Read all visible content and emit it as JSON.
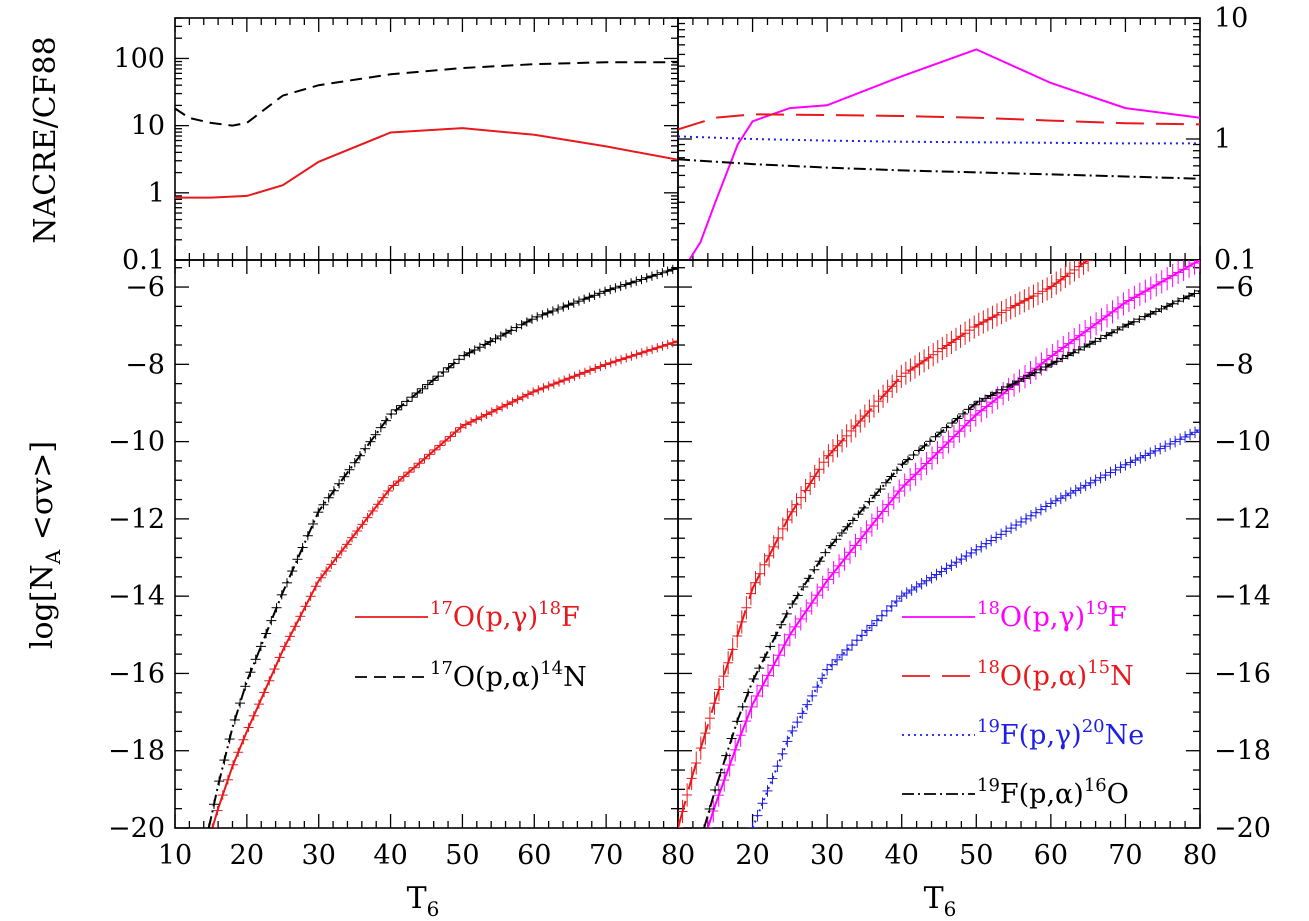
{
  "chart_data": [
    {
      "panel": "top-left",
      "type": "line",
      "yscale": "log",
      "xlim": [
        10,
        80
      ],
      "ylim": [
        0.1,
        400
      ],
      "ylabel": "NACRE/CF88",
      "y_ticklabels": [
        "0.1",
        "1",
        "10",
        "100"
      ],
      "series": [
        {
          "name": "17O(p,γ)18F",
          "color": "#e8191c",
          "dash": "solid",
          "x": [
            10,
            15,
            20,
            25,
            30,
            40,
            50,
            60,
            70,
            80
          ],
          "y": [
            0.85,
            0.85,
            0.9,
            1.3,
            2.9,
            7.9,
            9.2,
            7.3,
            4.9,
            3.1
          ]
        },
        {
          "name": "17O(p,α)14N",
          "color": "#000000",
          "dash": "dashed",
          "x": [
            10,
            12,
            15,
            18,
            20,
            25,
            30,
            40,
            50,
            60,
            70,
            80
          ],
          "y": [
            18,
            13,
            11,
            10,
            11,
            28,
            40,
            58,
            72,
            82,
            88,
            88
          ]
        }
      ]
    },
    {
      "panel": "top-right",
      "type": "line",
      "yscale": "log",
      "xlim": [
        10,
        80
      ],
      "ylim": [
        0.1,
        10
      ],
      "y_ticklabels": [
        "0.1",
        "1",
        "10"
      ],
      "series": [
        {
          "name": "18O(p,γ)19F",
          "color": "#ff00ff",
          "dash": "solid",
          "x": [
            11.5,
            13,
            15,
            18,
            20,
            25,
            30,
            40,
            50,
            60,
            70,
            80
          ],
          "y": [
            0.1,
            0.14,
            0.3,
            0.9,
            1.4,
            1.8,
            1.9,
            3.3,
            5.5,
            2.9,
            1.8,
            1.5
          ]
        },
        {
          "name": "18O(p,α)15N",
          "color": "#e8191c",
          "dash": "longdash",
          "x": [
            10,
            15,
            20,
            30,
            40,
            50,
            60,
            70,
            80
          ],
          "y": [
            1.2,
            1.5,
            1.6,
            1.58,
            1.55,
            1.5,
            1.42,
            1.35,
            1.32
          ]
        },
        {
          "name": "19F(p,γ)20Ne",
          "color": "#1e1ee6",
          "dash": "dotted",
          "x": [
            10,
            20,
            30,
            40,
            50,
            60,
            70,
            80
          ],
          "y": [
            1.05,
            1.0,
            0.97,
            0.95,
            0.94,
            0.93,
            0.92,
            0.92
          ]
        },
        {
          "name": "19F(p,α)16O",
          "color": "#000000",
          "dash": "dashdot",
          "x": [
            10,
            20,
            30,
            40,
            50,
            60,
            70,
            80
          ],
          "y": [
            0.68,
            0.62,
            0.58,
            0.55,
            0.53,
            0.51,
            0.49,
            0.47
          ]
        }
      ]
    },
    {
      "panel": "bottom-left",
      "type": "line",
      "xlim": [
        10,
        80
      ],
      "ylim": [
        -20,
        -5.3
      ],
      "xlabel": "T6",
      "ylabel": "log[NA <σv>]",
      "x_ticklabels": [
        "10",
        "20",
        "30",
        "40",
        "50",
        "60",
        "70",
        "80"
      ],
      "y_ticklabels": [
        "−20",
        "−18",
        "−16",
        "−14",
        "−12",
        "−10",
        "−8",
        "−6"
      ],
      "series": [
        {
          "name": "17O(p,γ)18F",
          "color": "#e8191c",
          "dash": "solid",
          "errorbars": true,
          "x": [
            15.2,
            16,
            18,
            20,
            25,
            30,
            40,
            50,
            60,
            70,
            80
          ],
          "y": [
            -20,
            -19.5,
            -18.4,
            -17.5,
            -15.4,
            -13.6,
            -11.2,
            -9.6,
            -8.7,
            -8.0,
            -7.4
          ]
        },
        {
          "name": "17O(p,α)14N",
          "color": "#000000",
          "dash": "dashdot",
          "errorbars": true,
          "x": [
            14.7,
            16,
            18,
            20,
            25,
            30,
            40,
            50,
            60,
            70,
            80
          ],
          "y": [
            -20,
            -18.9,
            -17.4,
            -16.2,
            -13.9,
            -11.8,
            -9.3,
            -7.8,
            -6.8,
            -6.1,
            -5.5
          ]
        }
      ]
    },
    {
      "panel": "bottom-right",
      "type": "line",
      "xlim": [
        10,
        80
      ],
      "ylim": [
        -20,
        -5.3
      ],
      "xlabel": "T6",
      "x_ticklabels": [
        "20",
        "30",
        "40",
        "50",
        "60",
        "70",
        "80"
      ],
      "y_ticklabels": [
        "−20",
        "−18",
        "−16",
        "−14",
        "−12",
        "−10",
        "−8",
        "−6"
      ],
      "series": [
        {
          "name": "18O(p,α)15N",
          "color": "#e8191c",
          "dash": "longdash",
          "errorbars": true,
          "errsize": 0.3,
          "x": [
            10,
            12,
            15,
            18,
            20,
            25,
            30,
            40,
            50,
            60,
            65
          ],
          "y": [
            -20,
            -18.6,
            -16.7,
            -15.0,
            -13.8,
            -11.9,
            -10.4,
            -8.3,
            -7.0,
            -6.0,
            -5.3
          ]
        },
        {
          "name": "18O(p,γ)19F",
          "color": "#ff00ff",
          "dash": "solid",
          "errorbars": true,
          "errsize": 0.3,
          "x": [
            14,
            15,
            18,
            20,
            25,
            30,
            40,
            50,
            60,
            70,
            80
          ],
          "y": [
            -20,
            -19.4,
            -17.8,
            -16.8,
            -15.0,
            -13.6,
            -11.2,
            -9.3,
            -7.8,
            -6.4,
            -5.3
          ]
        },
        {
          "name": "19F(p,γ)20Ne",
          "color": "#1e1ee6",
          "dash": "dotted",
          "errorbars": true,
          "errsize": 0.15,
          "x": [
            20,
            25,
            30,
            40,
            50,
            60,
            70,
            80
          ],
          "y": [
            -20,
            -17.6,
            -15.9,
            -14.0,
            -12.8,
            -11.6,
            -10.6,
            -9.7
          ]
        },
        {
          "name": "19F(p,α)16O",
          "color": "#000000",
          "dash": "dashdot",
          "errorbars": true,
          "errsize": 0.1,
          "x": [
            13.5,
            15,
            18,
            20,
            25,
            30,
            40,
            50,
            60,
            70,
            80
          ],
          "y": [
            -20,
            -19.0,
            -17.2,
            -16.2,
            -14.3,
            -12.8,
            -10.6,
            -9.0,
            -8.0,
            -7.0,
            -6.1
          ]
        }
      ]
    }
  ],
  "legend_left": [
    {
      "pre": "17",
      "mid": "O(p,γ)",
      "sup": "18",
      "end": "F",
      "color": "#e8191c",
      "dash": "solid"
    },
    {
      "pre": "17",
      "mid": "O(p,α)",
      "sup": "14",
      "end": "N",
      "color": "#000000",
      "dash": "dashed"
    }
  ],
  "legend_right": [
    {
      "pre": "18",
      "mid": "O(p,γ)",
      "sup": "19",
      "end": "F",
      "color": "#ff00ff",
      "dash": "solid"
    },
    {
      "pre": "18",
      "mid": "O(p,α)",
      "sup": "15",
      "end": "N",
      "color": "#e8191c",
      "dash": "longdash"
    },
    {
      "pre": "19",
      "mid": "F(p,γ)",
      "sup": "20",
      "end": "Ne",
      "color": "#1e1ee6",
      "dash": "dotted"
    },
    {
      "pre": "19",
      "mid": "F(p,α)",
      "sup": "16",
      "end": "O",
      "color": "#000000",
      "dash": "dashdot"
    }
  ],
  "labels": {
    "top_ylabel": "NACRE/CF88",
    "bottom_ylabel_main": "log[N",
    "bottom_ylabel_sub": "A",
    "bottom_ylabel_end": " <σv>]",
    "xlabel_main": "T",
    "xlabel_sub": "6"
  }
}
